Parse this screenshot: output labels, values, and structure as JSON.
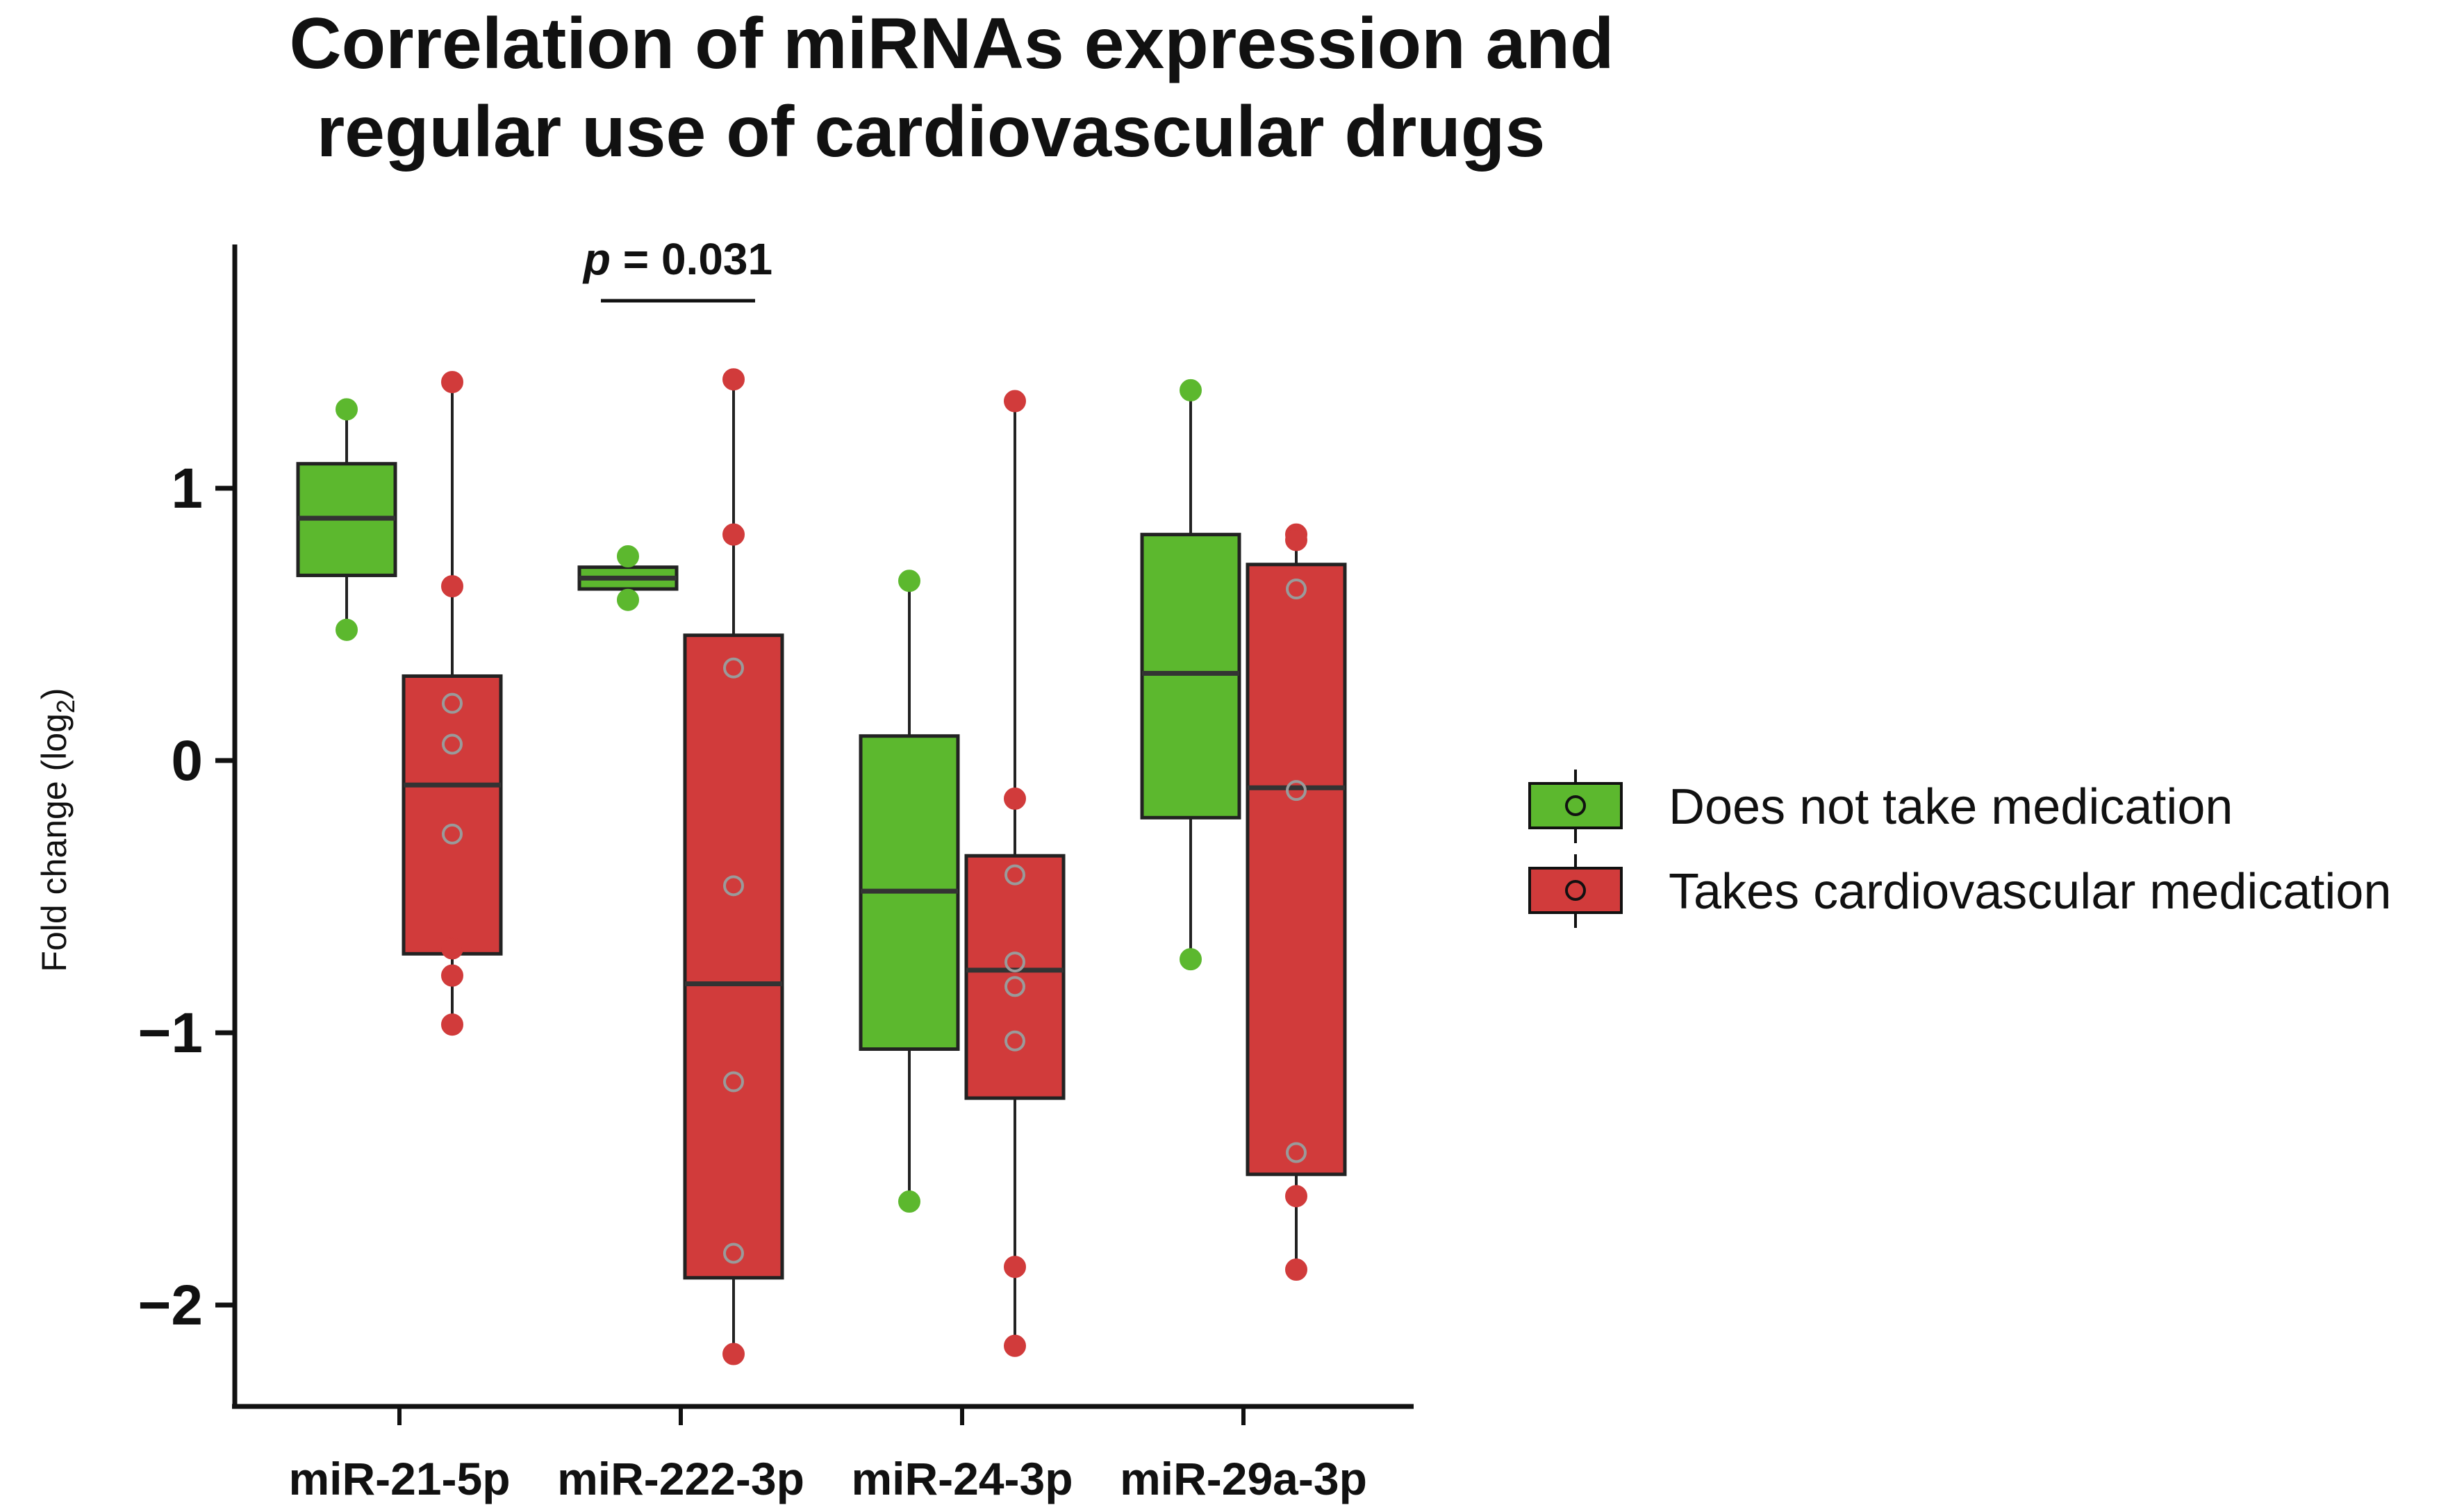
{
  "chart_data": {
    "type": "box",
    "title_lines": [
      "Correlation of miRNAs expression and",
      "regular use of cardiovascular drugs"
    ],
    "xlabel": "",
    "ylabel": "Fold change (log",
    "ylabel_sub": "2",
    "ylabel_close": ")",
    "ylim": [
      -2.4,
      1.8
    ],
    "yticks": [
      1,
      0,
      -1,
      -2
    ],
    "ytick_labels": [
      "1",
      "0",
      "−1",
      "−2"
    ],
    "categories": [
      "miR-21-5p",
      "miR-222-3p",
      "miR-24-3p",
      "miR-29a-3p"
    ],
    "series": [
      {
        "name": "Does not take medication",
        "color": "#5cb82e",
        "boxes": [
          {
            "q1": 0.68,
            "median": 0.89,
            "q3": 1.09,
            "whisker_low": 0.48,
            "whisker_high": 1.29,
            "points": [
              1.29,
              0.48
            ]
          },
          {
            "q1": 0.63,
            "median": 0.67,
            "q3": 0.71,
            "whisker_low": 0.59,
            "whisker_high": 0.75,
            "points": [
              0.75,
              0.59
            ]
          },
          {
            "q1": -1.06,
            "median": -0.48,
            "q3": 0.09,
            "whisker_low": -1.62,
            "whisker_high": 0.66,
            "points": [
              0.66,
              -1.62
            ]
          },
          {
            "q1": -0.21,
            "median": 0.32,
            "q3": 0.83,
            "whisker_low": -0.73,
            "whisker_high": 1.36,
            "points": [
              1.36,
              -0.73
            ]
          }
        ]
      },
      {
        "name": "Takes cardiovascular medication",
        "color": "#d13b3b",
        "boxes": [
          {
            "q1": -0.71,
            "median": -0.09,
            "q3": 0.31,
            "whisker_low": -0.97,
            "whisker_high": 1.39,
            "points": [
              1.39,
              0.64,
              0.21,
              0.06,
              -0.27,
              -0.69,
              -0.79,
              -0.97
            ]
          },
          {
            "q1": -1.9,
            "median": -0.82,
            "q3": 0.46,
            "whisker_low": -2.18,
            "whisker_high": 1.4,
            "points": [
              1.4,
              0.83,
              0.34,
              -0.46,
              -1.18,
              -1.81,
              -2.18
            ]
          },
          {
            "q1": -1.24,
            "median": -0.77,
            "q3": -0.35,
            "whisker_low": -2.15,
            "whisker_high": 1.32,
            "points": [
              1.32,
              -0.14,
              -0.42,
              -0.74,
              -0.83,
              -1.03,
              -1.86,
              -2.15
            ]
          },
          {
            "q1": -1.52,
            "median": -0.1,
            "q3": 0.72,
            "whisker_low": -1.87,
            "whisker_high": 0.83,
            "points": [
              0.83,
              0.81,
              0.63,
              -0.11,
              -1.44,
              -1.6,
              -1.87
            ]
          }
        ]
      }
    ],
    "annotations": [
      {
        "text_italic": "p",
        "text": " = 0.031",
        "category": "miR-222-3p"
      }
    ],
    "legend_position": "right"
  },
  "colors": {
    "axis": "#111111",
    "green_fill": "#5cb82e",
    "red_fill": "#d13b3b",
    "green_point": "#5cb82e",
    "red_point": "#d13b3b",
    "point_outline": "#9a9a9a"
  }
}
